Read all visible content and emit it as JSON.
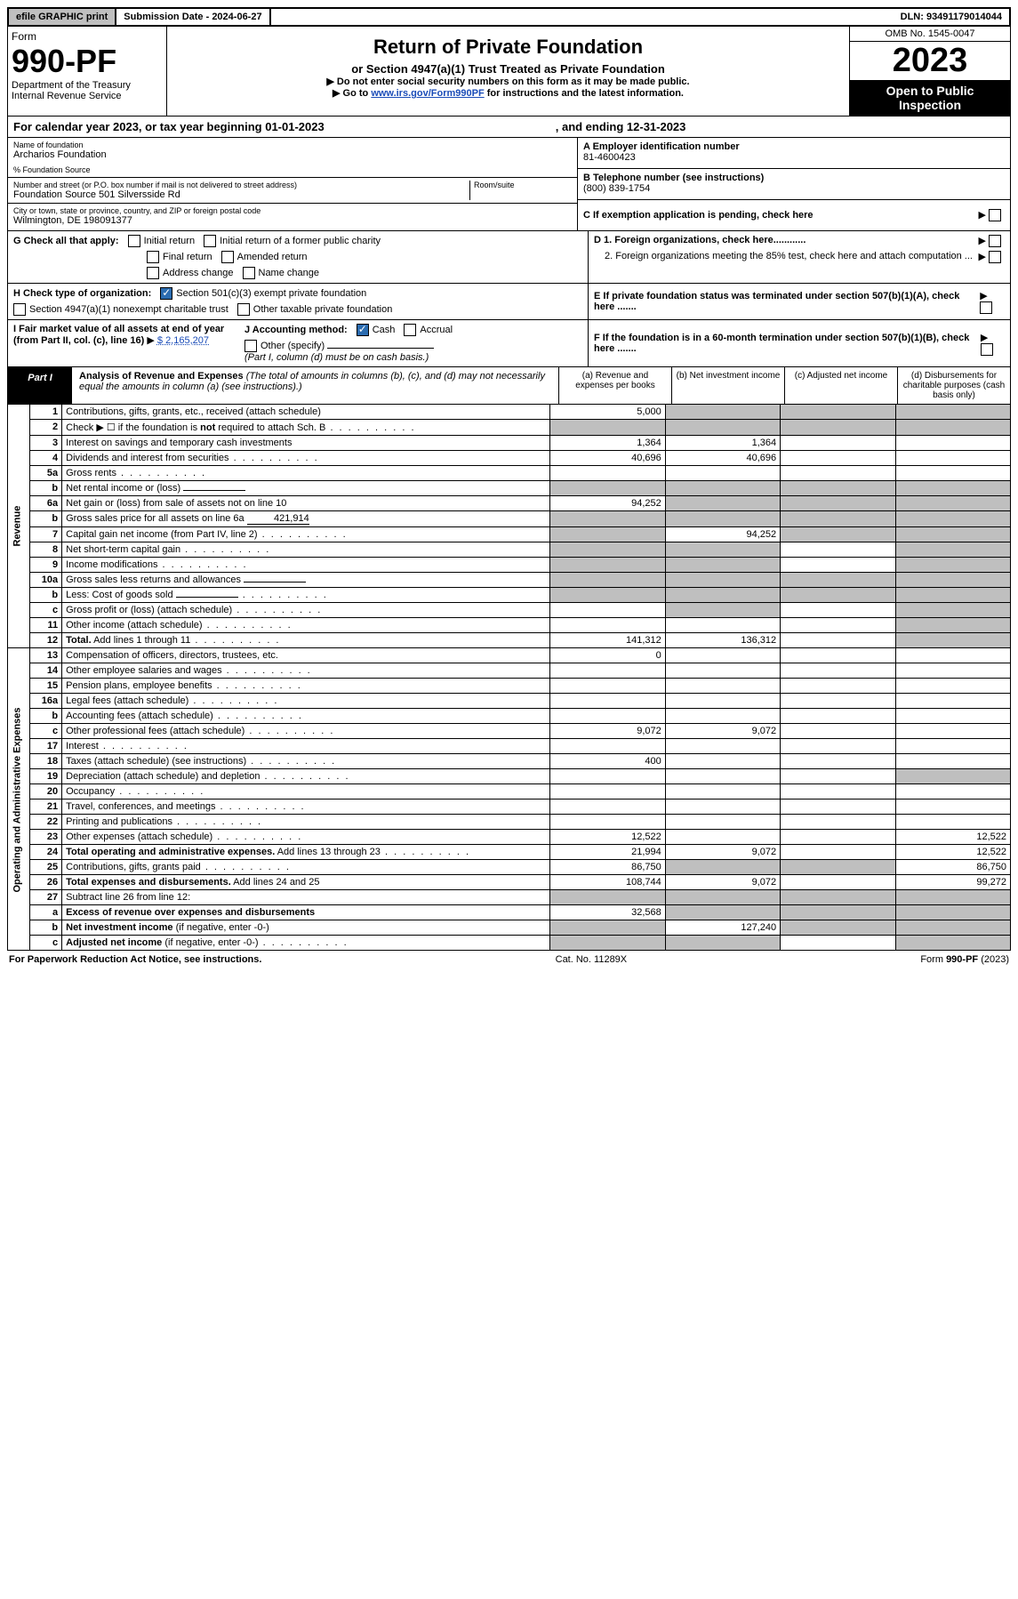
{
  "topbar": {
    "efile": "efile GRAPHIC print",
    "sub_label": "Submission Date - 2024-06-27",
    "dln": "DLN: 93491179014044"
  },
  "header": {
    "form_word": "Form",
    "form_no": "990-PF",
    "dept": "Department of the Treasury",
    "irs": "Internal Revenue Service",
    "title": "Return of Private Foundation",
    "subtitle": "or Section 4947(a)(1) Trust Treated as Private Foundation",
    "note1": "▶ Do not enter social security numbers on this form as it may be made public.",
    "note2": "▶ Go to",
    "note2_link": "www.irs.gov/Form990PF",
    "note2_tail": "for instructions and the latest information.",
    "omb": "OMB No. 1545-0047",
    "year": "2023",
    "open": "Open to Public Inspection"
  },
  "cal": {
    "text": "For calendar year 2023, or tax year beginning 01-01-2023",
    "end": ", and ending 12-31-2023"
  },
  "info": {
    "name_label": "Name of foundation",
    "name": "Archarios Foundation",
    "pct": "% Foundation Source",
    "addr_label": "Number and street (or P.O. box number if mail is not delivered to street address)",
    "addr": "Foundation Source 501 Silversside Rd",
    "room_label": "Room/suite",
    "city_label": "City or town, state or province, country, and ZIP or foreign postal code",
    "city": "Wilmington, DE  198091377",
    "a_label": "A Employer identification number",
    "a_val": "81-4600423",
    "b_label": "B Telephone number (see instructions)",
    "b_val": "(800) 839-1754",
    "c_label": "C If exemption application is pending, check here",
    "d1": "D 1. Foreign organizations, check here............",
    "d2": "2. Foreign organizations meeting the 85% test, check here and attach computation ...",
    "e": "E  If private foundation status was terminated under section 507(b)(1)(A), check here .......",
    "f": "F  If the foundation is in a 60-month termination under section 507(b)(1)(B), check here ......."
  },
  "g": {
    "label": "G Check all that apply:",
    "opts": [
      "Initial return",
      "Initial return of a former public charity",
      "Final return",
      "Amended return",
      "Address change",
      "Name change"
    ]
  },
  "h": {
    "label": "H Check type of organization:",
    "o1": "Section 501(c)(3) exempt private foundation",
    "o2": "Section 4947(a)(1) nonexempt charitable trust",
    "o3": "Other taxable private foundation"
  },
  "i": {
    "label": "I Fair market value of all assets at end of year (from Part II, col. (c), line 16)",
    "val": "$  2,165,207"
  },
  "j": {
    "label": "J Accounting method:",
    "cash": "Cash",
    "accrual": "Accrual",
    "other": "Other (specify)",
    "note": "(Part I, column (d) must be on cash basis.)"
  },
  "part1": {
    "label": "Part I",
    "title": "Analysis of Revenue and Expenses",
    "sub": "(The total of amounts in columns (b), (c), and (d) may not necessarily equal the amounts in column (a) (see instructions).)",
    "cols": {
      "a": "(a)   Revenue and expenses per books",
      "b": "(b)   Net investment income",
      "c": "(c)   Adjusted net income",
      "d": "(d)   Disbursements for charitable purposes (cash basis only)"
    }
  },
  "sections": {
    "revenue": "Revenue",
    "expenses": "Operating and Administrative Expenses"
  },
  "rows": [
    {
      "n": "1",
      "d": "Contributions, gifts, grants, etc., received (attach schedule)",
      "a": "5,000",
      "dgrey": true,
      "bcgrey": true
    },
    {
      "n": "2",
      "d": "Check ▶ ☐ if the foundation is <b>not</b> required to attach Sch. B",
      "dots": true,
      "allgrey": true
    },
    {
      "n": "3",
      "d": "Interest on savings and temporary cash investments",
      "a": "1,364",
      "b": "1,364"
    },
    {
      "n": "4",
      "d": "Dividends and interest from securities",
      "dots": true,
      "a": "40,696",
      "b": "40,696"
    },
    {
      "n": "5a",
      "d": "Gross rents",
      "dots": true
    },
    {
      "n": "b",
      "d": "Net rental income or (loss)",
      "inline": "",
      "allgrey": true
    },
    {
      "n": "6a",
      "d": "Net gain or (loss) from sale of assets not on line 10",
      "a": "94,252",
      "bcgrey": true,
      "dgrey": true
    },
    {
      "n": "b",
      "d": "Gross sales price for all assets on line 6a",
      "inline": "421,914",
      "allgrey": true
    },
    {
      "n": "7",
      "d": "Capital gain net income (from Part IV, line 2)",
      "dots": true,
      "b": "94,252",
      "agrey": true,
      "cdgrey": true
    },
    {
      "n": "8",
      "d": "Net short-term capital gain",
      "dots": true,
      "abgrey": true,
      "dgrey": true
    },
    {
      "n": "9",
      "d": "Income modifications",
      "dots": true,
      "abgrey": true,
      "dgrey": true
    },
    {
      "n": "10a",
      "d": "Gross sales less returns and allowances",
      "inline": "",
      "allgrey": true
    },
    {
      "n": "b",
      "d": "Less: Cost of goods sold",
      "dots": true,
      "inline": "",
      "allgrey": true
    },
    {
      "n": "c",
      "d": "Gross profit or (loss) (attach schedule)",
      "dots": true,
      "bgrey": true,
      "dgrey": true
    },
    {
      "n": "11",
      "d": "Other income (attach schedule)",
      "dots": true,
      "dgrey": true
    },
    {
      "n": "12",
      "d": "<b>Total.</b> Add lines 1 through 11",
      "dots": true,
      "a": "141,312",
      "b": "136,312",
      "dgrey": true
    }
  ],
  "exp_rows": [
    {
      "n": "13",
      "d": "Compensation of officers, directors, trustees, etc.",
      "a": "0"
    },
    {
      "n": "14",
      "d": "Other employee salaries and wages",
      "dots": true
    },
    {
      "n": "15",
      "d": "Pension plans, employee benefits",
      "dots": true
    },
    {
      "n": "16a",
      "d": "Legal fees (attach schedule)",
      "dots": true
    },
    {
      "n": "b",
      "d": "Accounting fees (attach schedule)",
      "dots": true
    },
    {
      "n": "c",
      "d": "Other professional fees (attach schedule)",
      "dots": true,
      "a": "9,072",
      "b": "9,072"
    },
    {
      "n": "17",
      "d": "Interest",
      "dots": true
    },
    {
      "n": "18",
      "d": "Taxes (attach schedule) (see instructions)",
      "dots": true,
      "a": "400"
    },
    {
      "n": "19",
      "d": "Depreciation (attach schedule) and depletion",
      "dots": true,
      "dgrey": true
    },
    {
      "n": "20",
      "d": "Occupancy",
      "dots": true
    },
    {
      "n": "21",
      "d": "Travel, conferences, and meetings",
      "dots": true
    },
    {
      "n": "22",
      "d": "Printing and publications",
      "dots": true
    },
    {
      "n": "23",
      "d": "Other expenses (attach schedule)",
      "dots": true,
      "a": "12,522",
      "dd": "12,522"
    },
    {
      "n": "24",
      "d": "<b>Total operating and administrative expenses.</b> Add lines 13 through 23",
      "dots": true,
      "a": "21,994",
      "b": "9,072",
      "dd": "12,522"
    },
    {
      "n": "25",
      "d": "Contributions, gifts, grants paid",
      "dots": true,
      "a": "86,750",
      "bcgrey": true,
      "dd": "86,750"
    },
    {
      "n": "26",
      "d": "<b>Total expenses and disbursements.</b> Add lines 24 and 25",
      "a": "108,744",
      "b": "9,072",
      "dd": "99,272"
    },
    {
      "n": "27",
      "d": "Subtract line 26 from line 12:",
      "allgrey": true
    },
    {
      "n": "a",
      "d": "<b>Excess of revenue over expenses and disbursements</b>",
      "a": "32,568",
      "bcdgrey": true
    },
    {
      "n": "b",
      "d": "<b>Net investment income</b> (if negative, enter -0-)",
      "b": "127,240",
      "agrey": true,
      "cdgrey": true
    },
    {
      "n": "c",
      "d": "<b>Adjusted net income</b> (if negative, enter -0-)",
      "dots": true,
      "abgrey": true,
      "dgrey": true
    }
  ],
  "footer": {
    "left": "For Paperwork Reduction Act Notice, see instructions.",
    "mid": "Cat. No. 11289X",
    "right": "Form 990-PF (2023)"
  }
}
